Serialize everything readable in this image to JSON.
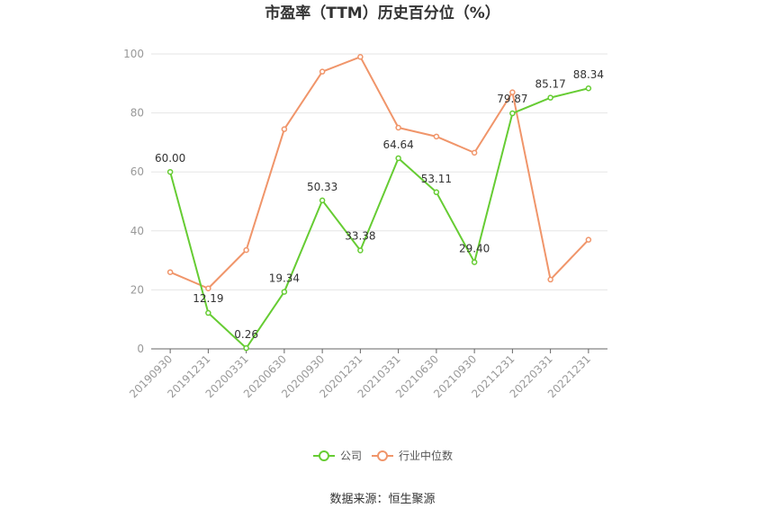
{
  "chart_data": {
    "type": "line",
    "title": "市盈率（TTM）历史百分位（%）",
    "categories": [
      "20190930",
      "20191231",
      "20200331",
      "20200630",
      "20200930",
      "20201231",
      "20210331",
      "20210630",
      "20210930",
      "20211231",
      "20220331",
      "20221231"
    ],
    "series": [
      {
        "name": "公司",
        "color": "#66cc33",
        "values": [
          60.0,
          12.19,
          0.26,
          19.34,
          50.33,
          33.38,
          64.64,
          53.11,
          29.4,
          79.87,
          85.17,
          88.34
        ],
        "labels": [
          "60.00",
          "12.19",
          "0.26",
          "19.34",
          "50.33",
          "33.38",
          "64.64",
          "53.11",
          "29.40",
          "79.87",
          "85.17",
          "88.34"
        ]
      },
      {
        "name": "行业中位数",
        "color": "#f0956a",
        "values": [
          26,
          20.5,
          33.5,
          74.5,
          94,
          99,
          75,
          72,
          66.5,
          87,
          23.5,
          37
        ]
      }
    ],
    "ylim": [
      0,
      100
    ],
    "yticks": [
      "0",
      "20",
      "40",
      "60",
      "80",
      "100"
    ],
    "grid": true,
    "legend": "bottom-center"
  },
  "source": "数据来源：恒生聚源"
}
